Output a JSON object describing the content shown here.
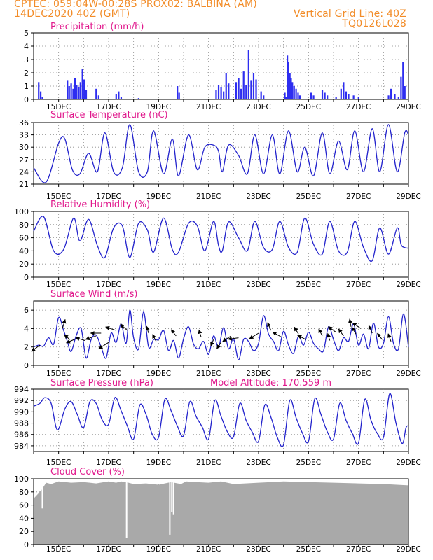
{
  "header": {
    "line1_left": "CPTEC:    059:04W-00:28S   PROX02: BALBINA (AM)",
    "line2_left": "14DEC2020 40Z (GMT)",
    "line2_right": "Vertical Grid Line: 40Z",
    "line3_right": "TQ0126L028"
  },
  "colors": {
    "header": "#f28c28",
    "title": "#e0188c",
    "line": "#2222cc",
    "bar": "#2d2df0",
    "cloud": "#a9a9a9",
    "grid": "#888888",
    "arrow": "#000000"
  },
  "x_axis": {
    "tick_labels": [
      "15DEC",
      "17DEC",
      "19DEC",
      "21DEC",
      "23DEC",
      "25DEC",
      "27DEC",
      "29DEC"
    ],
    "days_span": [
      0,
      15
    ]
  },
  "chart_data": [
    {
      "id": "precip",
      "type": "bar",
      "title": "Precipitation (mm/h)",
      "xlabel": "",
      "ylabel": "",
      "ylim": [
        0,
        5
      ],
      "yticks": [
        0,
        1,
        2,
        3,
        4,
        5
      ],
      "events": [
        {
          "x": 0.2,
          "y": 1.3
        },
        {
          "x": 0.28,
          "y": 0.6
        },
        {
          "x": 0.35,
          "y": 0.2
        },
        {
          "x": 1.35,
          "y": 1.4
        },
        {
          "x": 1.42,
          "y": 1.0
        },
        {
          "x": 1.5,
          "y": 1.2
        },
        {
          "x": 1.58,
          "y": 0.8
        },
        {
          "x": 1.65,
          "y": 1.6
        },
        {
          "x": 1.72,
          "y": 1.1
        },
        {
          "x": 1.8,
          "y": 0.9
        },
        {
          "x": 1.87,
          "y": 1.3
        },
        {
          "x": 1.95,
          "y": 2.3
        },
        {
          "x": 2.02,
          "y": 1.5
        },
        {
          "x": 2.1,
          "y": 0.7
        },
        {
          "x": 2.5,
          "y": 0.8
        },
        {
          "x": 2.6,
          "y": 0.3
        },
        {
          "x": 3.3,
          "y": 0.4
        },
        {
          "x": 3.4,
          "y": 0.6
        },
        {
          "x": 3.5,
          "y": 0.2
        },
        {
          "x": 4.2,
          "y": 0.1
        },
        {
          "x": 5.75,
          "y": 1.0
        },
        {
          "x": 5.82,
          "y": 0.5
        },
        {
          "x": 7.3,
          "y": 0.7
        },
        {
          "x": 7.4,
          "y": 1.1
        },
        {
          "x": 7.5,
          "y": 0.9
        },
        {
          "x": 7.6,
          "y": 0.6
        },
        {
          "x": 7.7,
          "y": 2.0
        },
        {
          "x": 7.8,
          "y": 1.2
        },
        {
          "x": 8.1,
          "y": 1.3
        },
        {
          "x": 8.2,
          "y": 1.6
        },
        {
          "x": 8.3,
          "y": 0.8
        },
        {
          "x": 8.4,
          "y": 2.1
        },
        {
          "x": 8.5,
          "y": 1.1
        },
        {
          "x": 8.6,
          "y": 3.7
        },
        {
          "x": 8.7,
          "y": 1.4
        },
        {
          "x": 8.8,
          "y": 2.0
        },
        {
          "x": 8.9,
          "y": 1.5
        },
        {
          "x": 9.1,
          "y": 0.6
        },
        {
          "x": 9.2,
          "y": 0.3
        },
        {
          "x": 10.05,
          "y": 0.5
        },
        {
          "x": 10.1,
          "y": 0.2
        },
        {
          "x": 10.15,
          "y": 3.3
        },
        {
          "x": 10.2,
          "y": 2.8
        },
        {
          "x": 10.25,
          "y": 2.0
        },
        {
          "x": 10.3,
          "y": 1.6
        },
        {
          "x": 10.35,
          "y": 1.3
        },
        {
          "x": 10.42,
          "y": 1.0
        },
        {
          "x": 10.5,
          "y": 0.8
        },
        {
          "x": 10.58,
          "y": 0.5
        },
        {
          "x": 10.65,
          "y": 0.3
        },
        {
          "x": 11.1,
          "y": 0.5
        },
        {
          "x": 11.2,
          "y": 0.3
        },
        {
          "x": 11.55,
          "y": 0.7
        },
        {
          "x": 11.65,
          "y": 0.5
        },
        {
          "x": 11.75,
          "y": 0.3
        },
        {
          "x": 12.1,
          "y": 0.2
        },
        {
          "x": 12.3,
          "y": 0.8
        },
        {
          "x": 12.4,
          "y": 1.3
        },
        {
          "x": 12.5,
          "y": 0.6
        },
        {
          "x": 12.6,
          "y": 0.4
        },
        {
          "x": 12.8,
          "y": 0.3
        },
        {
          "x": 13.0,
          "y": 0.2
        },
        {
          "x": 14.2,
          "y": 0.3
        },
        {
          "x": 14.3,
          "y": 0.8
        },
        {
          "x": 14.45,
          "y": 0.4
        },
        {
          "x": 14.6,
          "y": 0.2
        },
        {
          "x": 14.7,
          "y": 1.7
        },
        {
          "x": 14.78,
          "y": 2.8
        },
        {
          "x": 14.85,
          "y": 1.0
        }
      ]
    },
    {
      "id": "temp",
      "type": "line",
      "title": "Surface Temperature (nC)",
      "xlabel": "",
      "ylabel": "",
      "ylim": [
        21,
        36
      ],
      "yticks": [
        21,
        24,
        27,
        30,
        33,
        36
      ],
      "series": [
        {
          "x": [
            0,
            0.5,
            1.0,
            1.25,
            1.55,
            1.85,
            2.2,
            2.55,
            2.85,
            3.2,
            3.55,
            3.85,
            4.2,
            4.55,
            4.8,
            5.2,
            5.55,
            5.8,
            6.2,
            6.55,
            6.85,
            7.2,
            7.4,
            7.55,
            7.8,
            8.2,
            8.55,
            8.85,
            9.2,
            9.55,
            9.85,
            10.2,
            10.55,
            10.85,
            11.2,
            11.55,
            11.85,
            12.2,
            12.55,
            12.85,
            13.2,
            13.55,
            13.85,
            14.2,
            14.55,
            14.85,
            15
          ],
          "y": [
            25,
            21.5,
            31.0,
            32,
            24.5,
            23.5,
            28.5,
            24,
            33.5,
            24,
            25,
            35.5,
            24,
            24,
            34,
            23.5,
            32,
            23,
            33,
            24.5,
            30,
            30.5,
            29,
            24,
            30.5,
            28,
            23.5,
            33,
            23.5,
            33,
            23.5,
            34,
            24,
            30,
            23,
            33.5,
            23.5,
            31.5,
            24.5,
            34,
            24,
            34.5,
            24,
            35.5,
            24,
            33.5,
            33
          ]
        }
      ]
    },
    {
      "id": "rh",
      "type": "line",
      "title": "Relative Humidity (%)",
      "xlabel": "",
      "ylabel": "",
      "ylim": [
        0,
        100
      ],
      "yticks": [
        0,
        20,
        40,
        60,
        80,
        100
      ],
      "series": [
        {
          "x": [
            0,
            0.4,
            0.8,
            1.2,
            1.6,
            1.85,
            2.2,
            2.55,
            2.85,
            3.2,
            3.55,
            3.85,
            4.2,
            4.55,
            4.8,
            5.2,
            5.55,
            5.8,
            6.2,
            6.55,
            6.85,
            7.2,
            7.4,
            7.55,
            7.8,
            8.2,
            8.55,
            8.85,
            9.2,
            9.55,
            9.85,
            10.2,
            10.55,
            10.85,
            11.2,
            11.55,
            11.85,
            12.2,
            12.55,
            12.85,
            13.2,
            13.55,
            13.85,
            14.2,
            14.55,
            14.7,
            14.85,
            15
          ],
          "y": [
            70,
            92,
            40,
            42,
            90,
            55,
            88,
            48,
            30,
            75,
            78,
            30,
            82,
            72,
            38,
            90,
            42,
            38,
            82,
            78,
            40,
            85,
            48,
            40,
            84,
            60,
            40,
            85,
            45,
            42,
            85,
            45,
            38,
            90,
            50,
            35,
            85,
            40,
            38,
            85,
            45,
            25,
            75,
            35,
            75,
            50,
            45,
            44
          ]
        }
      ]
    },
    {
      "id": "wind",
      "type": "line",
      "title": "Surface Wind (m/s)",
      "xlabel": "",
      "ylabel": "",
      "ylim": [
        0,
        7
      ],
      "yticks": [
        0,
        2,
        4,
        6
      ],
      "series": [
        {
          "x": [
            0,
            0.2,
            0.4,
            0.6,
            0.8,
            1.0,
            1.2,
            1.35,
            1.5,
            1.7,
            1.9,
            2.1,
            2.3,
            2.5,
            2.7,
            2.9,
            3.1,
            3.3,
            3.5,
            3.7,
            3.85,
            4.0,
            4.2,
            4.4,
            4.6,
            4.8,
            5.0,
            5.2,
            5.4,
            5.6,
            5.8,
            6.0,
            6.2,
            6.4,
            6.6,
            6.8,
            7.0,
            7.2,
            7.4,
            7.6,
            7.8,
            8.0,
            8.2,
            8.4,
            8.6,
            8.8,
            9.0,
            9.2,
            9.4,
            9.6,
            9.8,
            10.0,
            10.2,
            10.4,
            10.6,
            10.8,
            11.0,
            11.2,
            11.4,
            11.6,
            11.8,
            12.0,
            12.2,
            12.4,
            12.6,
            12.8,
            13.0,
            13.2,
            13.4,
            13.6,
            13.8,
            14.0,
            14.2,
            14.4,
            14.6,
            14.8,
            15
          ],
          "y": [
            2.0,
            2.2,
            2.1,
            3.0,
            2.3,
            5.2,
            3.8,
            2.6,
            1.5,
            3.2,
            4.0,
            0.8,
            2.8,
            3.3,
            2.0,
            0.8,
            3.5,
            2.5,
            4.5,
            2.4,
            6.0,
            3.0,
            1.8,
            5.8,
            2.0,
            2.8,
            2.8,
            3.8,
            1.6,
            2.7,
            0.8,
            2.9,
            4.2,
            2.3,
            1.8,
            2.6,
            1.2,
            3.2,
            2.0,
            4.1,
            1.8,
            2.9,
            0.6,
            2.8,
            2.6,
            1.6,
            2.4,
            5.4,
            3.4,
            2.6,
            1.6,
            3.7,
            2.2,
            1.3,
            3.2,
            2.2,
            3.6,
            2.4,
            1.8,
            1.6,
            4.2,
            2.8,
            1.6,
            3.0,
            2.6,
            4.5,
            2.2,
            3.4,
            1.8,
            4.6,
            2.0,
            2.4,
            5.3,
            2.4,
            1.8,
            5.6,
            2.0
          ]
        }
      ],
      "arrows": [
        {
          "x": 0.25,
          "y": 2.2,
          "dx": -12,
          "dy": 9
        },
        {
          "x": 1.15,
          "y": 4.0,
          "dx": 4,
          "dy": -13
        },
        {
          "x": 1.45,
          "y": 2.8,
          "dx": -8,
          "dy": -7
        },
        {
          "x": 1.7,
          "y": 2.9,
          "dx": -14,
          "dy": 6
        },
        {
          "x": 2.05,
          "y": 2.7,
          "dx": -13,
          "dy": -4
        },
        {
          "x": 2.5,
          "y": 3.2,
          "dx": -15,
          "dy": 5
        },
        {
          "x": 2.7,
          "y": 3.5,
          "dx": -15,
          "dy": 0
        },
        {
          "x": 3.0,
          "y": 2.5,
          "dx": -14,
          "dy": 9
        },
        {
          "x": 3.3,
          "y": 3.8,
          "dx": -15,
          "dy": -5
        },
        {
          "x": 3.75,
          "y": 3.8,
          "dx": -10,
          "dy": -9
        },
        {
          "x": 4.6,
          "y": 3.5,
          "dx": -3,
          "dy": -10
        },
        {
          "x": 4.9,
          "y": 2.6,
          "dx": -5,
          "dy": -10
        },
        {
          "x": 5.7,
          "y": 3.2,
          "dx": -7,
          "dy": -9
        },
        {
          "x": 6.7,
          "y": 3.1,
          "dx": -3,
          "dy": -10
        },
        {
          "x": 7.2,
          "y": 2.8,
          "dx": -4,
          "dy": 9
        },
        {
          "x": 7.5,
          "y": 2.5,
          "dx": -6,
          "dy": 9
        },
        {
          "x": 7.9,
          "y": 3.2,
          "dx": -12,
          "dy": 8
        },
        {
          "x": 8.2,
          "y": 3.0,
          "dx": -15,
          "dy": 2
        },
        {
          "x": 9.0,
          "y": 3.5,
          "dx": -13,
          "dy": 8
        },
        {
          "x": 9.5,
          "y": 3.8,
          "dx": -5,
          "dy": -11
        },
        {
          "x": 9.9,
          "y": 3.1,
          "dx": -12,
          "dy": -7
        },
        {
          "x": 10.6,
          "y": 3.4,
          "dx": -6,
          "dy": -10
        },
        {
          "x": 10.9,
          "y": 2.8,
          "dx": -12,
          "dy": -6
        },
        {
          "x": 11.55,
          "y": 3.2,
          "dx": -5,
          "dy": -10
        },
        {
          "x": 11.85,
          "y": 2.7,
          "dx": -3,
          "dy": -10
        },
        {
          "x": 12.1,
          "y": 3.6,
          "dx": -11,
          "dy": -8
        },
        {
          "x": 12.4,
          "y": 3.2,
          "dx": -7,
          "dy": -10
        },
        {
          "x": 12.7,
          "y": 4.2,
          "dx": -2,
          "dy": -11
        },
        {
          "x": 12.9,
          "y": 3.4,
          "dx": -6,
          "dy": -10
        },
        {
          "x": 13.1,
          "y": 4.0,
          "dx": -12,
          "dy": -8
        },
        {
          "x": 13.55,
          "y": 3.5,
          "dx": -5,
          "dy": -11
        },
        {
          "x": 13.95,
          "y": 2.8,
          "dx": -7,
          "dy": -9
        },
        {
          "x": 14.3,
          "y": 2.6,
          "dx": -4,
          "dy": -11
        }
      ]
    },
    {
      "id": "pres",
      "type": "line",
      "title": "Surface Pressure (hPa)",
      "subtitle": "Model Altitude: 170.559 m",
      "xlabel": "",
      "ylabel": "",
      "ylim": [
        983,
        994
      ],
      "yticks": [
        984,
        986,
        988,
        990,
        992,
        994
      ],
      "series": [
        {
          "x": [
            0,
            0.25,
            0.45,
            0.7,
            0.95,
            1.25,
            1.5,
            1.75,
            2.0,
            2.25,
            2.5,
            2.75,
            3.0,
            3.25,
            3.5,
            3.75,
            4.0,
            4.25,
            4.5,
            4.75,
            5.0,
            5.25,
            5.5,
            5.75,
            6.0,
            6.25,
            6.5,
            6.75,
            7.0,
            7.25,
            7.5,
            7.75,
            8.0,
            8.25,
            8.5,
            8.75,
            9.0,
            9.25,
            9.5,
            9.75,
            10.0,
            10.25,
            10.5,
            10.75,
            11.0,
            11.25,
            11.5,
            11.75,
            12.0,
            12.25,
            12.5,
            12.75,
            13.0,
            13.25,
            13.5,
            13.75,
            14.0,
            14.25,
            14.5,
            14.75,
            14.9,
            15
          ],
          "y": [
            991,
            991.5,
            992.5,
            991.5,
            986.8,
            990.5,
            991.8,
            989.5,
            987.2,
            991.8,
            991.5,
            988.5,
            987.8,
            992.5,
            990.2,
            987.5,
            985.2,
            991.2,
            989.5,
            986.0,
            985.5,
            992.2,
            990.2,
            987.5,
            985.8,
            991.8,
            989.2,
            987.3,
            985.2,
            992.0,
            989.2,
            986.5,
            985.6,
            991.5,
            988.5,
            986.4,
            984.8,
            991.2,
            989.0,
            985.5,
            984.2,
            992.0,
            989.0,
            986.3,
            984.8,
            992.3,
            989.5,
            986.5,
            985.2,
            991.5,
            988.5,
            986.2,
            984.5,
            992.2,
            988.5,
            986.2,
            985.5,
            993.2,
            988.0,
            984.4,
            987.2,
            987.5
          ]
        }
      ]
    },
    {
      "id": "cloud",
      "type": "area",
      "title": "Cloud Cover (%)",
      "xlabel": "",
      "ylabel": "",
      "ylim": [
        0,
        100
      ],
      "yticks": [
        0,
        20,
        40,
        60,
        80,
        100
      ],
      "series": [
        {
          "x": [
            0,
            0.2,
            0.35,
            0.5,
            0.7,
            1.0,
            1.5,
            2.0,
            2.5,
            3.0,
            3.3,
            3.5,
            3.7,
            4.0,
            4.5,
            5.0,
            5.5,
            5.9,
            6.0,
            6.1,
            6.5,
            7.0,
            7.5,
            8.0,
            9.0,
            10.0,
            11.0,
            12.0,
            13.0,
            14.0,
            15
          ],
          "y": [
            70,
            78,
            85,
            94,
            92,
            96,
            94,
            95,
            93,
            96,
            94,
            96,
            95,
            92,
            93,
            91,
            95,
            92,
            94,
            96,
            95,
            94,
            96,
            92,
            94,
            96,
            95,
            94,
            93,
            92,
            90
          ]
        }
      ],
      "dips": [
        {
          "x": 3.72,
          "y": 10
        },
        {
          "x": 5.45,
          "y": 15
        },
        {
          "x": 5.53,
          "y": 50
        },
        {
          "x": 5.6,
          "y": 45
        },
        {
          "x": 0.35,
          "y": 55
        }
      ]
    }
  ]
}
